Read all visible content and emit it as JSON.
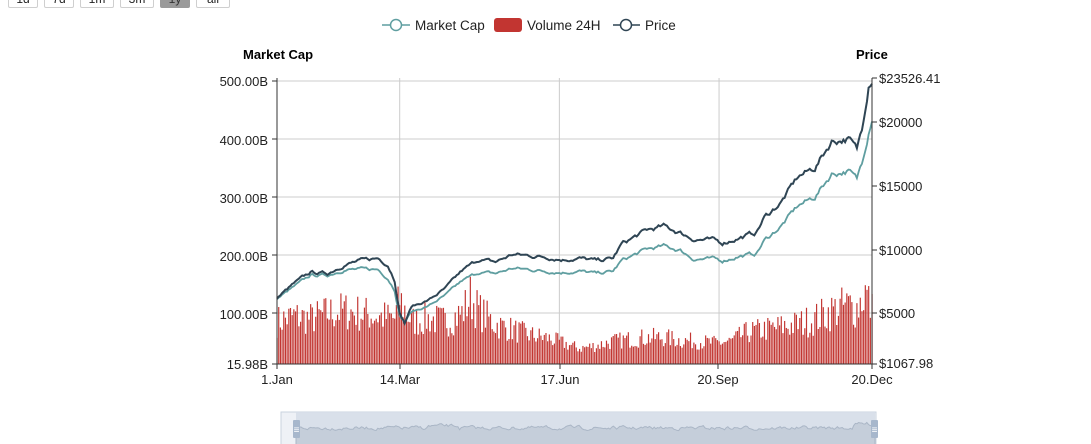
{
  "range_buttons": [
    {
      "label": "1d",
      "active": false
    },
    {
      "label": "7d",
      "active": false
    },
    {
      "label": "1m",
      "active": false
    },
    {
      "label": "3m",
      "active": false
    },
    {
      "label": "1y",
      "active": true
    },
    {
      "label": "all",
      "active": false
    }
  ],
  "colors": {
    "market_cap": "#5f9ea0",
    "volume": "#c23531",
    "price": "#2f4554",
    "grid": "#cccccc",
    "axis": "#333333",
    "zoom_fill": "#d6dee9",
    "zoom_handle": "#a7b7cc"
  },
  "chart_data": {
    "type": "line",
    "legend": [
      "Market Cap",
      "Volume 24H",
      "Price"
    ],
    "legend_position": "top-center",
    "left_axis": {
      "title": "Market Cap",
      "min_label": "15.98B",
      "ticks": [
        "500.00B",
        "400.00B",
        "300.00B",
        "200.00B",
        "100.00B"
      ],
      "min": 15.98,
      "max": 500,
      "unit": "B"
    },
    "right_axis": {
      "title": "Price",
      "min_label": "$1067.98",
      "max_label": "$23526.41",
      "ticks": [
        "$20000",
        "$15000",
        "$10000",
        "$5000"
      ],
      "min": 1067.98,
      "max": 23526.41
    },
    "x_axis": {
      "ticks": [
        "1.Jan",
        "14.Mar",
        "17.Jun",
        "20.Sep",
        "20.Dec"
      ],
      "tick_days": [
        0,
        73,
        168,
        263,
        354
      ]
    },
    "grid": true,
    "price_keypoints": [
      [
        0,
        6200
      ],
      [
        10,
        7300
      ],
      [
        20,
        8200
      ],
      [
        30,
        8100
      ],
      [
        40,
        8800
      ],
      [
        50,
        9100
      ],
      [
        60,
        9300
      ],
      [
        66,
        8800
      ],
      [
        70,
        7600
      ],
      [
        73,
        5000
      ],
      [
        76,
        4200
      ],
      [
        80,
        5500
      ],
      [
        90,
        6000
      ],
      [
        100,
        6900
      ],
      [
        110,
        8300
      ],
      [
        120,
        9200
      ],
      [
        130,
        9000
      ],
      [
        140,
        9600
      ],
      [
        150,
        9500
      ],
      [
        160,
        9400
      ],
      [
        170,
        9200
      ],
      [
        180,
        9300
      ],
      [
        190,
        9100
      ],
      [
        200,
        9300
      ],
      [
        205,
        10400
      ],
      [
        220,
        11500
      ],
      [
        230,
        11800
      ],
      [
        240,
        11300
      ],
      [
        248,
        10800
      ],
      [
        260,
        10700
      ],
      [
        265,
        10500
      ],
      [
        275,
        10900
      ],
      [
        285,
        11300
      ],
      [
        290,
        12500
      ],
      [
        300,
        13700
      ],
      [
        310,
        15700
      ],
      [
        320,
        16400
      ],
      [
        330,
        18500
      ],
      [
        340,
        18700
      ],
      [
        345,
        17800
      ],
      [
        348,
        19500
      ],
      [
        352,
        23100
      ],
      [
        354,
        23526
      ]
    ],
    "market_cap_keypoints": [
      [
        0,
        125
      ],
      [
        10,
        145
      ],
      [
        20,
        165
      ],
      [
        30,
        165
      ],
      [
        40,
        175
      ],
      [
        50,
        175
      ],
      [
        60,
        175
      ],
      [
        66,
        160
      ],
      [
        70,
        140
      ],
      [
        73,
        95
      ],
      [
        76,
        85
      ],
      [
        80,
        102
      ],
      [
        90,
        112
      ],
      [
        100,
        130
      ],
      [
        110,
        155
      ],
      [
        120,
        170
      ],
      [
        130,
        168
      ],
      [
        140,
        177
      ],
      [
        150,
        175
      ],
      [
        160,
        172
      ],
      [
        170,
        170
      ],
      [
        180,
        172
      ],
      [
        190,
        168
      ],
      [
        200,
        172
      ],
      [
        205,
        190
      ],
      [
        220,
        210
      ],
      [
        230,
        215
      ],
      [
        240,
        208
      ],
      [
        248,
        193
      ],
      [
        260,
        193
      ],
      [
        265,
        190
      ],
      [
        275,
        198
      ],
      [
        285,
        202
      ],
      [
        290,
        225
      ],
      [
        300,
        250
      ],
      [
        310,
        285
      ],
      [
        320,
        300
      ],
      [
        330,
        340
      ],
      [
        340,
        345
      ],
      [
        345,
        330
      ],
      [
        348,
        360
      ],
      [
        352,
        415
      ],
      [
        354,
        440
      ]
    ],
    "volume_keypoints": [
      [
        0,
        75
      ],
      [
        10,
        85
      ],
      [
        20,
        80
      ],
      [
        30,
        90
      ],
      [
        40,
        95
      ],
      [
        50,
        90
      ],
      [
        60,
        85
      ],
      [
        70,
        80
      ],
      [
        73,
        115
      ],
      [
        80,
        75
      ],
      [
        90,
        80
      ],
      [
        100,
        75
      ],
      [
        110,
        90
      ],
      [
        115,
        120
      ],
      [
        120,
        95
      ],
      [
        130,
        70
      ],
      [
        140,
        60
      ],
      [
        150,
        50
      ],
      [
        160,
        45
      ],
      [
        170,
        35
      ],
      [
        180,
        25
      ],
      [
        190,
        30
      ],
      [
        200,
        38
      ],
      [
        210,
        42
      ],
      [
        220,
        45
      ],
      [
        230,
        45
      ],
      [
        240,
        40
      ],
      [
        250,
        38
      ],
      [
        260,
        35
      ],
      [
        270,
        38
      ],
      [
        280,
        55
      ],
      [
        290,
        60
      ],
      [
        300,
        65
      ],
      [
        310,
        70
      ],
      [
        320,
        80
      ],
      [
        330,
        95
      ],
      [
        340,
        105
      ],
      [
        345,
        100
      ],
      [
        350,
        130
      ],
      [
        354,
        95
      ]
    ]
  },
  "navigator": {
    "handle_left": "≡",
    "handle_right": "≡"
  }
}
